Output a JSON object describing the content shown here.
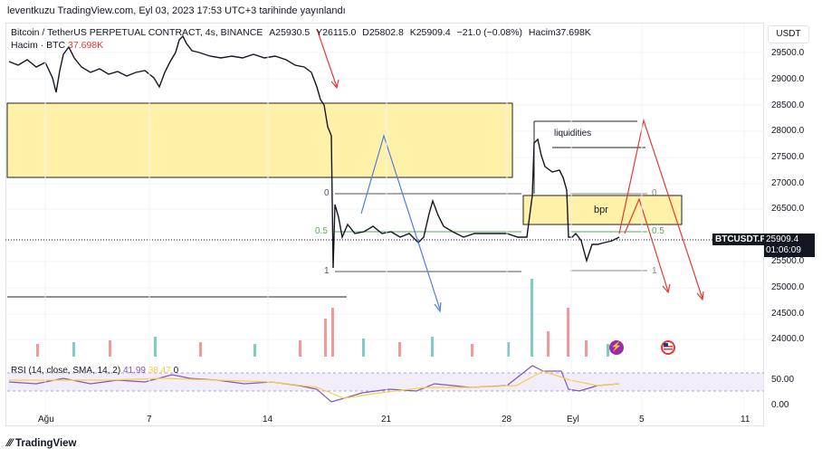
{
  "header": {
    "published": "leventkuzu TradingView.com, Eyl 03, 2023 17:53 UTC+3 tarihinde yayınlandı"
  },
  "legend": {
    "symbol": "Bitcoin / TetherUS PERPETUAL CONTRACT, 4s, BINANCE",
    "open": "A25930.5",
    "high": "Y26115.0",
    "low": "D25802.8",
    "close": "K25909.4",
    "change": "−21.0 (−0.08%)",
    "volume": "Hacim37.698K",
    "volume_label": "Hacim · BTC",
    "volume_value": "37.698K"
  },
  "price_axis": {
    "currency": "USDT",
    "ticks": [
      "29500.0",
      "29000.0",
      "28500.0",
      "28000.0",
      "27500.0",
      "27000.0",
      "26500.0",
      "26000.0",
      "25500.0",
      "25000.0",
      "24500.0",
      "24000.0"
    ],
    "current_symbol": "BTCUSDT.P",
    "current_price": "25909.4",
    "countdown": "01:06:09"
  },
  "rsi": {
    "label": "RSI (14, close, SMA, 14, 2)",
    "value1": "41.99",
    "value2": "38.47",
    "value3": "0",
    "ticks": [
      "50.00",
      "0.00"
    ]
  },
  "date_axis": [
    "Ağu",
    "7",
    "14",
    "21",
    "28",
    "Eyl",
    "5",
    "11"
  ],
  "annotations": {
    "liquidities": "liquidities",
    "bpr": "bpr",
    "fib_left": [
      "0",
      "0.5",
      "1"
    ],
    "fib_right": [
      "0",
      "0.5",
      "1"
    ]
  },
  "colors": {
    "up": "#26a69a",
    "down": "#ef5350",
    "zone": "#fff2a8",
    "blue_arrow": "#4a7fe0",
    "red_arrow": "#e53935",
    "rsi": "#7e57c2",
    "rsi_ma": "#f5d042"
  },
  "footer": {
    "brand": "TradingView"
  }
}
